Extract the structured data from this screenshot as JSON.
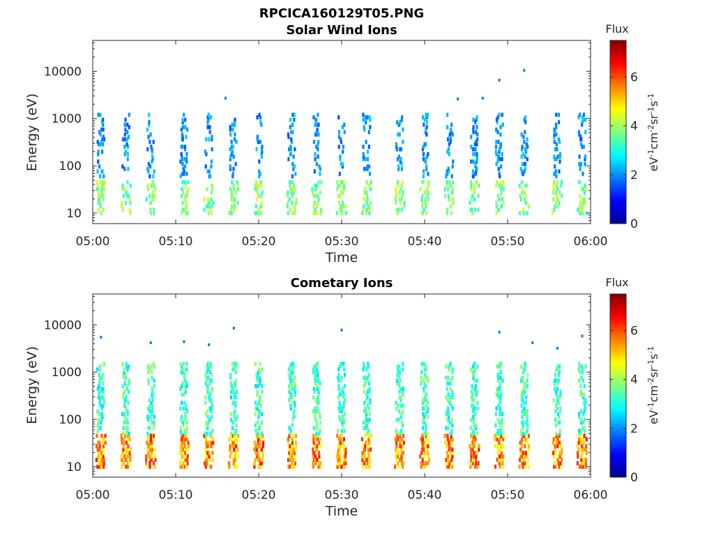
{
  "figure": {
    "filename_title": "RPCICA160129T05.PNG"
  },
  "colormap": [
    "#00008f",
    "#0000ff",
    "#0080ff",
    "#00ffff",
    "#80ff80",
    "#ffff00",
    "#ff8000",
    "#ff0000",
    "#800000"
  ],
  "chart_data": [
    {
      "type": "heatmap",
      "title": "Solar Wind Ions",
      "xlabel": "Time",
      "ylabel": "Energy (eV)",
      "y_scale": "log",
      "ylim": [
        6,
        45000
      ],
      "x_ticks": [
        "05:00",
        "05:10",
        "05:20",
        "05:30",
        "05:40",
        "05:50",
        "06:00"
      ],
      "y_ticks": [
        10,
        100,
        1000,
        10000
      ],
      "y_tick_labels": [
        "10",
        "100",
        "1000",
        "10000"
      ],
      "grid": false,
      "colorbar": {
        "title": "Flux",
        "label": "eV-1cm-2sr-1s-1",
        "range": [
          0,
          7.5
        ],
        "ticks": [
          "0",
          "2",
          "4",
          "6"
        ]
      },
      "columns_time": [
        "05:01",
        "05:04",
        "05:07",
        "05:11",
        "05:14",
        "05:17",
        "05:20",
        "05:24",
        "05:27",
        "05:30",
        "05:33",
        "05:37",
        "05:40",
        "05:43",
        "05:46",
        "05:49",
        "05:52",
        "05:56",
        "05:59"
      ],
      "series": [
        {
          "name": "low-energy band (~10-50 eV)",
          "energy_range": [
            10,
            45
          ],
          "flux_range": [
            3,
            4.5
          ]
        },
        {
          "name": "medium band (~60-1200 eV)",
          "energy_range": [
            60,
            1200
          ],
          "flux_range": [
            1.5,
            2.5
          ]
        }
      ],
      "sparse_points": [
        {
          "time": "05:16",
          "energy": 2700
        },
        {
          "time": "05:44",
          "energy": 2600
        },
        {
          "time": "05:47",
          "energy": 2700
        },
        {
          "time": "05:49",
          "energy": 6500
        },
        {
          "time": "05:52",
          "energy": 10500
        }
      ]
    },
    {
      "type": "heatmap",
      "title": "Cometary Ions",
      "xlabel": "Time",
      "ylabel": "Energy (eV)",
      "y_scale": "log",
      "ylim": [
        6,
        45000
      ],
      "x_ticks": [
        "05:00",
        "05:10",
        "05:20",
        "05:30",
        "05:40",
        "05:50",
        "06:00"
      ],
      "y_ticks": [
        10,
        100,
        1000,
        10000
      ],
      "y_tick_labels": [
        "10",
        "100",
        "1000",
        "10000"
      ],
      "grid": false,
      "colorbar": {
        "title": "Flux",
        "label": "eV-1cm-2sr-1s-1",
        "range": [
          0,
          7.5
        ],
        "ticks": [
          "0",
          "2",
          "4",
          "6"
        ]
      },
      "columns_time": [
        "05:01",
        "05:04",
        "05:07",
        "05:11",
        "05:14",
        "05:17",
        "05:20",
        "05:24",
        "05:27",
        "05:30",
        "05:33",
        "05:37",
        "05:40",
        "05:43",
        "05:46",
        "05:49",
        "05:52",
        "05:56",
        "05:59"
      ],
      "series": [
        {
          "name": "low-energy band (~10-45 eV)",
          "energy_range": [
            10,
            45
          ],
          "flux_range": [
            4.5,
            6.5
          ]
        },
        {
          "name": "medium band (~50-1500 eV)",
          "energy_range": [
            50,
            1500
          ],
          "flux_range": [
            2.5,
            4
          ]
        }
      ],
      "sparse_points": [
        {
          "time": "05:01",
          "energy": 5500
        },
        {
          "time": "05:07",
          "energy": 4200
        },
        {
          "time": "05:11",
          "energy": 4400
        },
        {
          "time": "05:14",
          "energy": 3800
        },
        {
          "time": "05:17",
          "energy": 8500
        },
        {
          "time": "05:30",
          "energy": 7800
        },
        {
          "time": "05:49",
          "energy": 7000
        },
        {
          "time": "05:53",
          "energy": 4200
        },
        {
          "time": "05:56",
          "energy": 3200
        },
        {
          "time": "05:59",
          "energy": 5800
        }
      ]
    }
  ]
}
